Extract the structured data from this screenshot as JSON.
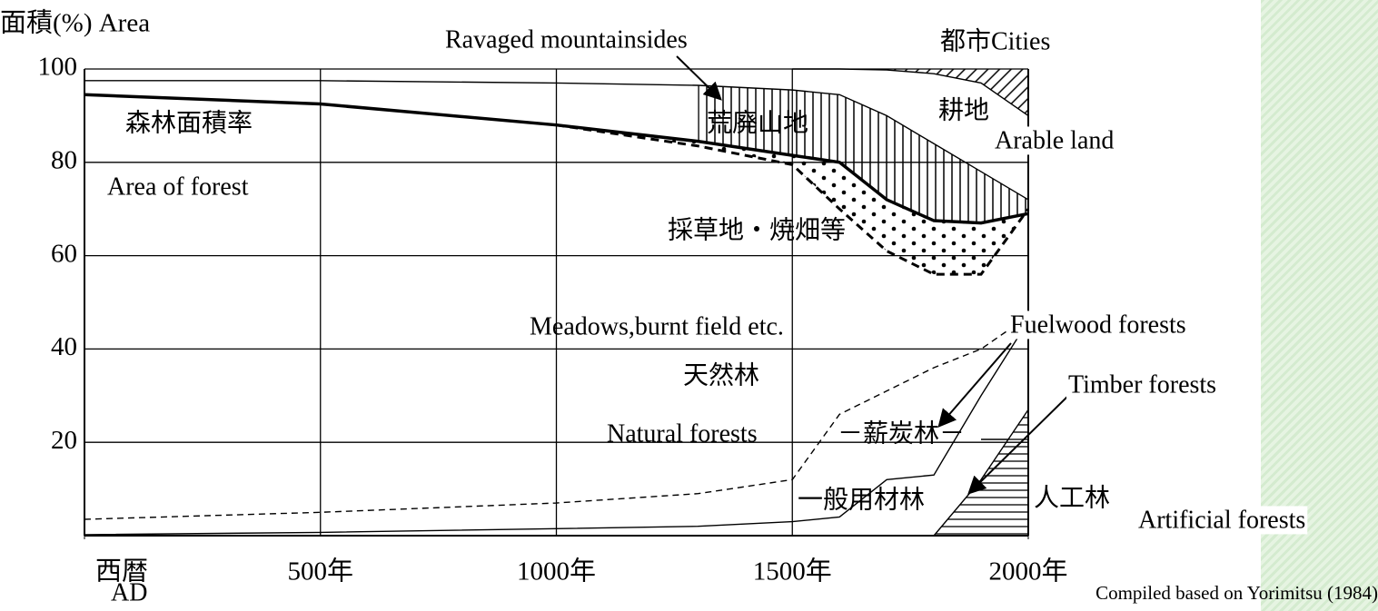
{
  "chart_data": {
    "type": "line",
    "ylabel": "面積(%) Area",
    "source": "Compiled based on Yorimitsu (1984)",
    "x": [
      0,
      500,
      1000,
      1300,
      1500,
      1600,
      1700,
      1800,
      1900,
      2000
    ],
    "xlim": [
      0,
      2000
    ],
    "xticks": [
      {
        "value": 0,
        "label": "西暦"
      },
      {
        "value": 500,
        "label": "500年"
      },
      {
        "value": 1000,
        "label": "1000年"
      },
      {
        "value": 1500,
        "label": "1500年"
      },
      {
        "value": 2000,
        "label": "2000年"
      }
    ],
    "ylim": [
      0,
      100
    ],
    "yticks": [
      20,
      40,
      60,
      80,
      100
    ],
    "grid": true,
    "series": [
      {
        "name": "森林面積率",
        "color": "#000000",
        "line_style": "solid",
        "values": [
          94.5,
          92.5,
          88,
          84.5,
          81.5,
          80,
          72,
          67.5,
          67,
          69
        ]
      },
      {
        "name": "採草地・焼畑等",
        "color": "#000000",
        "line_style": "dashed",
        "values": [
          null,
          null,
          88,
          83.5,
          79.5,
          70,
          61,
          56,
          56,
          70
        ]
      },
      {
        "name": "耕地",
        "color": "#000000",
        "line_style": "solid",
        "values": [
          97.5,
          97.5,
          97,
          96.5,
          95.5,
          94.5,
          90,
          84,
          78,
          72
        ]
      },
      {
        "name": "都市Cities",
        "color": "#000000",
        "line_style": "solid",
        "values": [
          null,
          null,
          null,
          null,
          100,
          100,
          99.8,
          99,
          97,
          90
        ]
      },
      {
        "name": "天然林",
        "color": "#000000",
        "line_style": "dashed",
        "values": [
          3.5,
          5,
          7,
          9,
          12,
          26,
          31,
          36,
          40,
          47
        ]
      },
      {
        "name": "一般用材林",
        "color": "#000000",
        "line_style": "solid",
        "values": [
          0.2,
          0.7,
          1.5,
          2,
          3,
          4,
          12,
          13,
          30,
          46
        ]
      },
      {
        "name": "人工林",
        "color": "#000000",
        "line_style": "solid",
        "values": [
          null,
          null,
          null,
          null,
          null,
          null,
          null,
          0,
          12,
          27
        ]
      }
    ],
    "annotations": [
      "Ravaged mountainsides",
      "森林面積率",
      "荒廃山地",
      "耕地",
      "Arable land",
      "Area of forest",
      "採草地・焼畑等",
      "Meadows,burnt field etc.",
      "Fuelwood  forests",
      "天然林",
      "Timber forests",
      "Natural forests",
      "－薪炭林－",
      "一般用材林",
      "人工林",
      "Artificial forests",
      "AD",
      "都市Cities"
    ]
  }
}
